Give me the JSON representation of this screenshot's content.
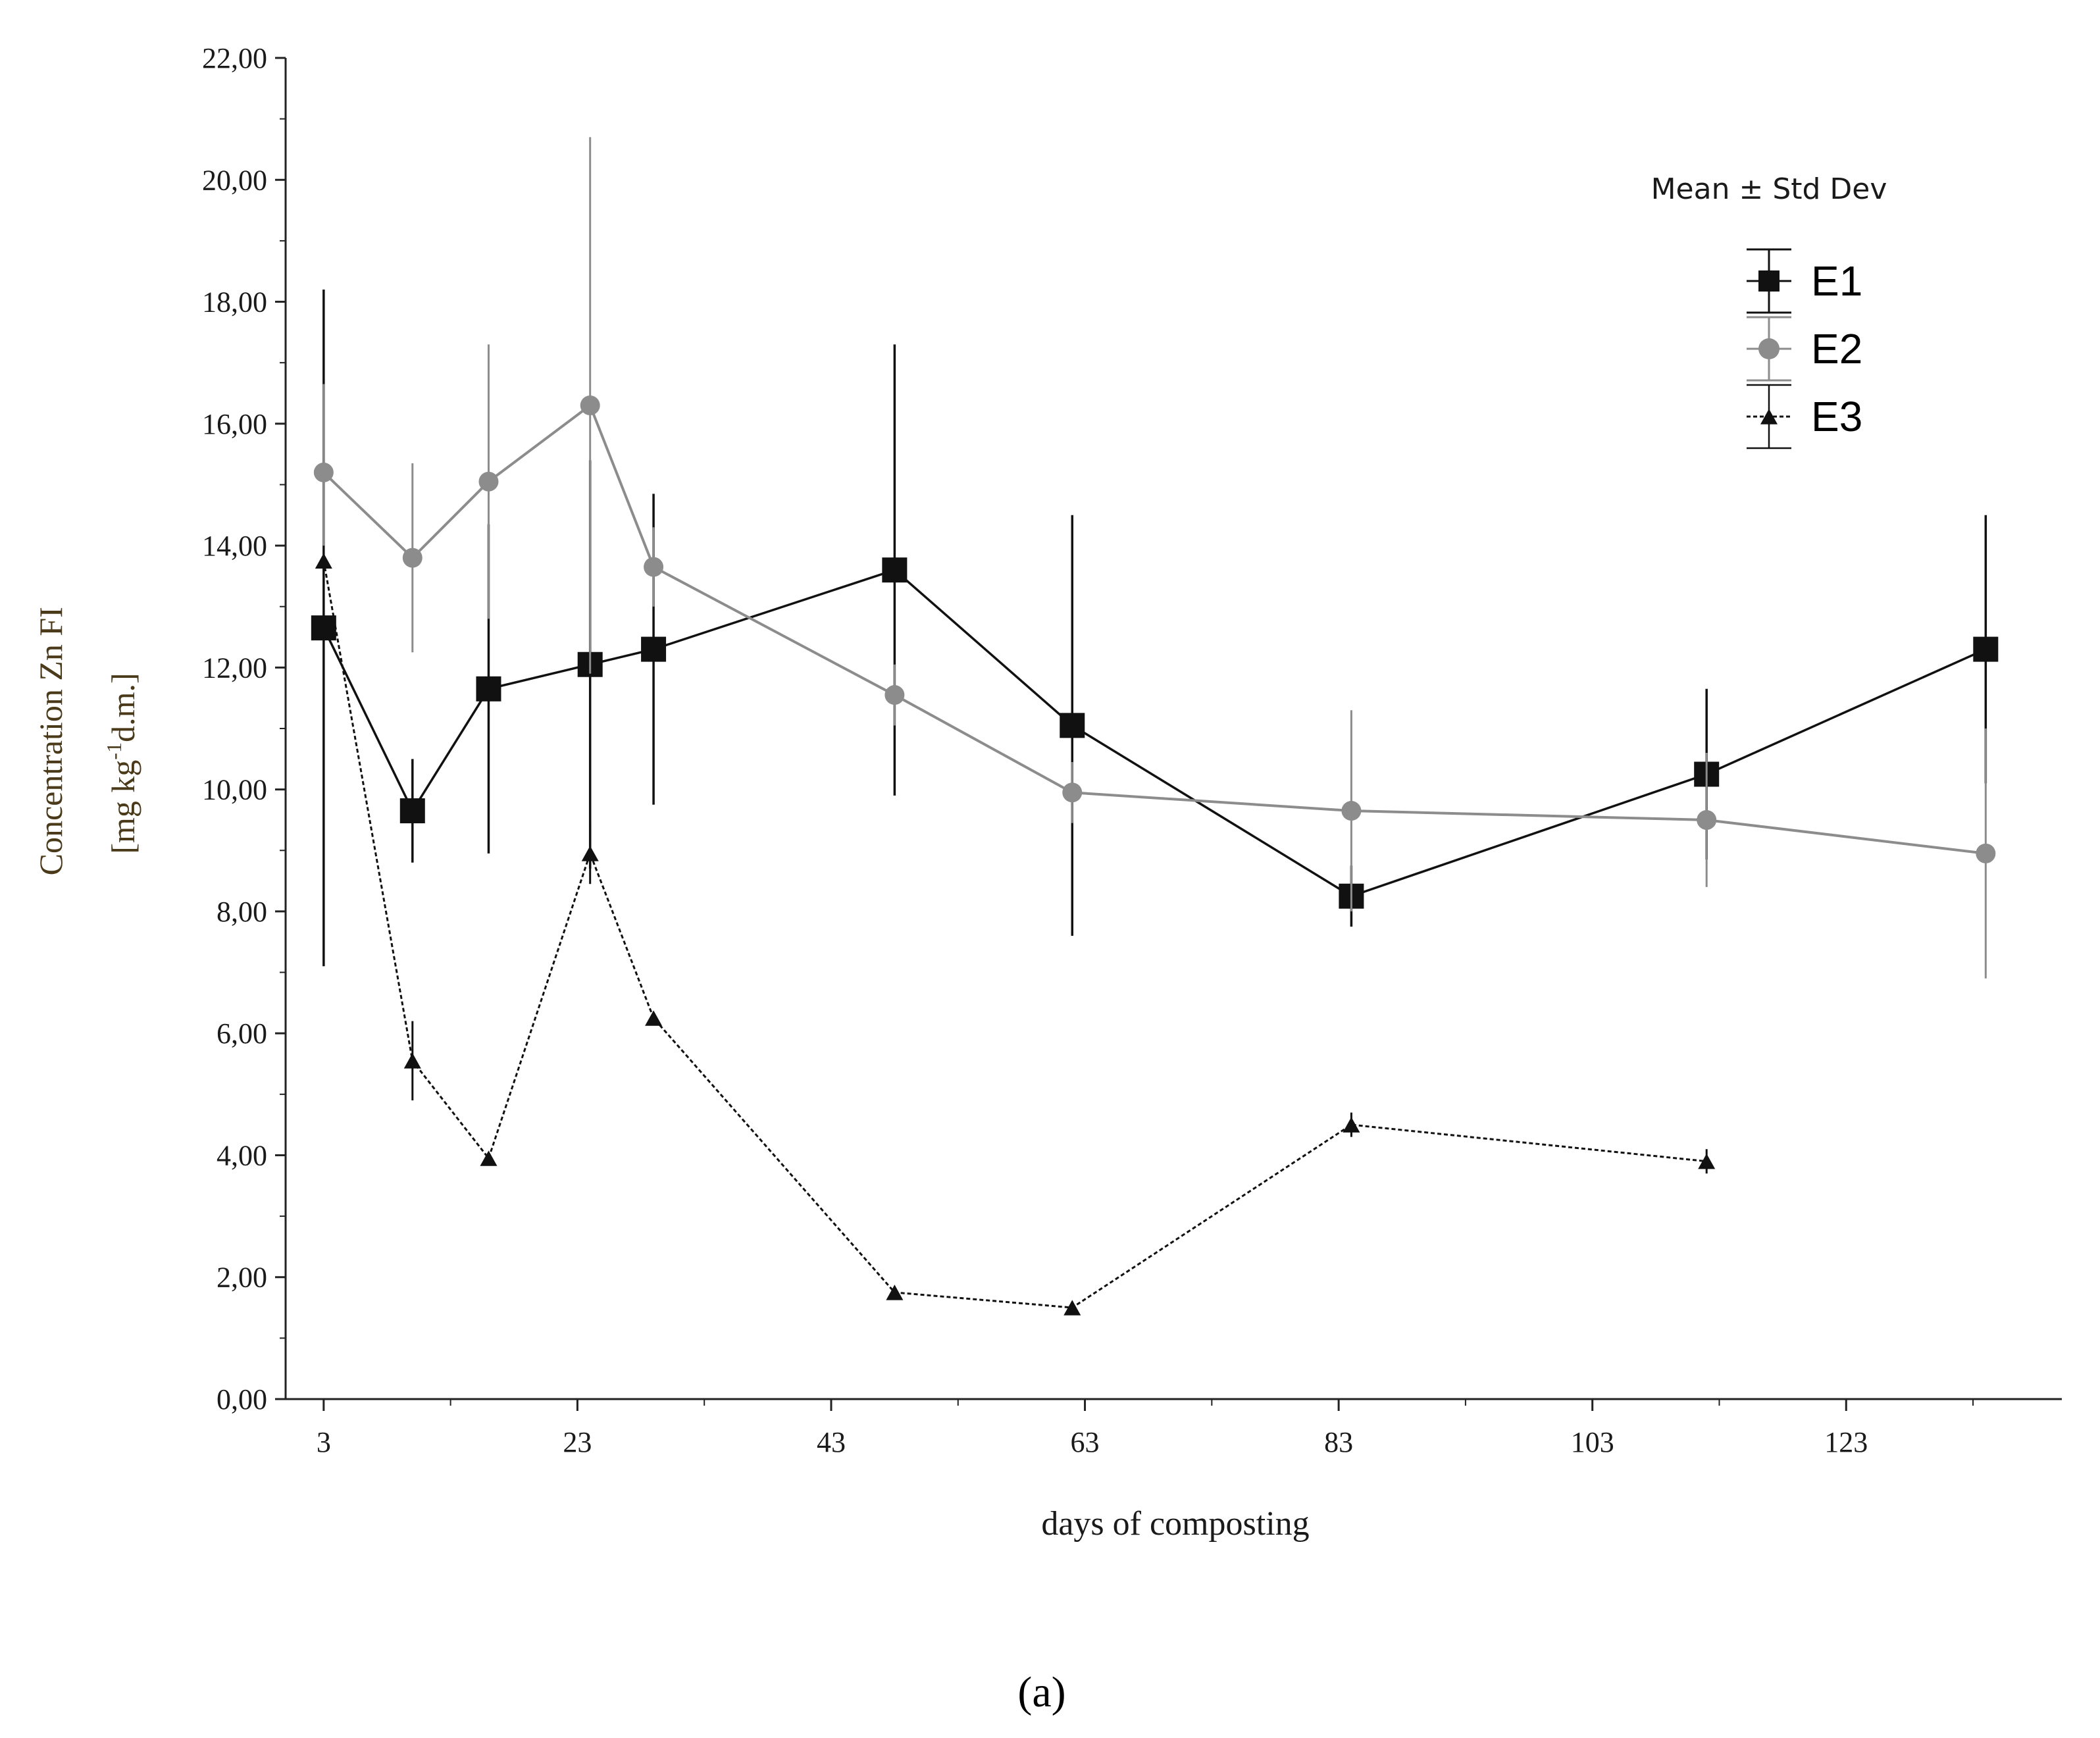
{
  "chart_data": {
    "type": "line",
    "xlabel": "days of composting",
    "ylabel_line1": "Concentration Zn FI",
    "ylabel_line2": "[mg kg",
    "ylabel_sup": "-1",
    "ylabel_line2_end": "d.m.]",
    "xlim": [
      0,
      140
    ],
    "ylim": [
      0,
      22
    ],
    "x_ticks": [
      3,
      23,
      43,
      63,
      83,
      103,
      123
    ],
    "x_tick_labels": [
      "3",
      "23",
      "43",
      "63",
      "83",
      "103",
      "123"
    ],
    "y_ticks": [
      0,
      2,
      4,
      6,
      8,
      10,
      12,
      14,
      16,
      18,
      20,
      22
    ],
    "y_tick_labels": [
      "0,00",
      "2,00",
      "4,00",
      "6,00",
      "8,00",
      "10,00",
      "12,00",
      "14,00",
      "16,00",
      "18,00",
      "20,00",
      "22,00"
    ],
    "legend_title": "Mean ± Std Dev",
    "legend_position": "top-right",
    "caption": "(a)",
    "series": [
      {
        "name": "E1",
        "marker": "square",
        "color": "#111111",
        "dash": "solid",
        "points": [
          {
            "x": 3,
            "y": 12.65,
            "sd": 5.55
          },
          {
            "x": 10,
            "y": 9.65,
            "sd": 0.85
          },
          {
            "x": 16,
            "y": 11.65,
            "sd": 2.7
          },
          {
            "x": 24,
            "y": 12.05,
            "sd": 3.35
          },
          {
            "x": 29,
            "y": 12.3,
            "sd": 2.55
          },
          {
            "x": 48,
            "y": 13.6,
            "sd": 3.7
          },
          {
            "x": 62,
            "y": 11.05,
            "sd": 3.45
          },
          {
            "x": 84,
            "y": 8.25,
            "sd": 0.5
          },
          {
            "x": 112,
            "y": 10.25,
            "sd": 1.4
          },
          {
            "x": 134,
            "y": 12.3,
            "sd": 2.2
          }
        ]
      },
      {
        "name": "E2",
        "marker": "circle",
        "color": "#8c8c8c",
        "dash": "solid",
        "points": [
          {
            "x": 3,
            "y": 15.2,
            "sd": 1.45
          },
          {
            "x": 10,
            "y": 13.8,
            "sd": 1.55
          },
          {
            "x": 16,
            "y": 15.05,
            "sd": 2.25
          },
          {
            "x": 24,
            "y": 16.3,
            "sd": 4.4
          },
          {
            "x": 29,
            "y": 13.65,
            "sd": 0.65
          },
          {
            "x": 48,
            "y": 11.55,
            "sd": 0.5
          },
          {
            "x": 62,
            "y": 9.95,
            "sd": 0.5
          },
          {
            "x": 84,
            "y": 9.65,
            "sd": 1.65
          },
          {
            "x": 112,
            "y": 9.5,
            "sd": 1.1
          },
          {
            "x": 134,
            "y": 8.95,
            "sd": 2.05
          }
        ]
      },
      {
        "name": "E3",
        "marker": "triangle",
        "color": "#111111",
        "dash": "dotted",
        "points": [
          {
            "x": 3,
            "y": 13.75,
            "sd": 0.25
          },
          {
            "x": 10,
            "y": 5.55,
            "sd": 0.65
          },
          {
            "x": 16,
            "y": 3.95,
            "sd": 0.1
          },
          {
            "x": 24,
            "y": 8.95,
            "sd": 0.5
          },
          {
            "x": 29,
            "y": 6.25,
            "sd": 0.1
          },
          {
            "x": 48,
            "y": 1.75,
            "sd": 0.1
          },
          {
            "x": 62,
            "y": 1.5,
            "sd": 0.1
          },
          {
            "x": 84,
            "y": 4.5,
            "sd": 0.2
          },
          {
            "x": 112,
            "y": 3.9,
            "sd": 0.2
          }
        ]
      }
    ]
  }
}
